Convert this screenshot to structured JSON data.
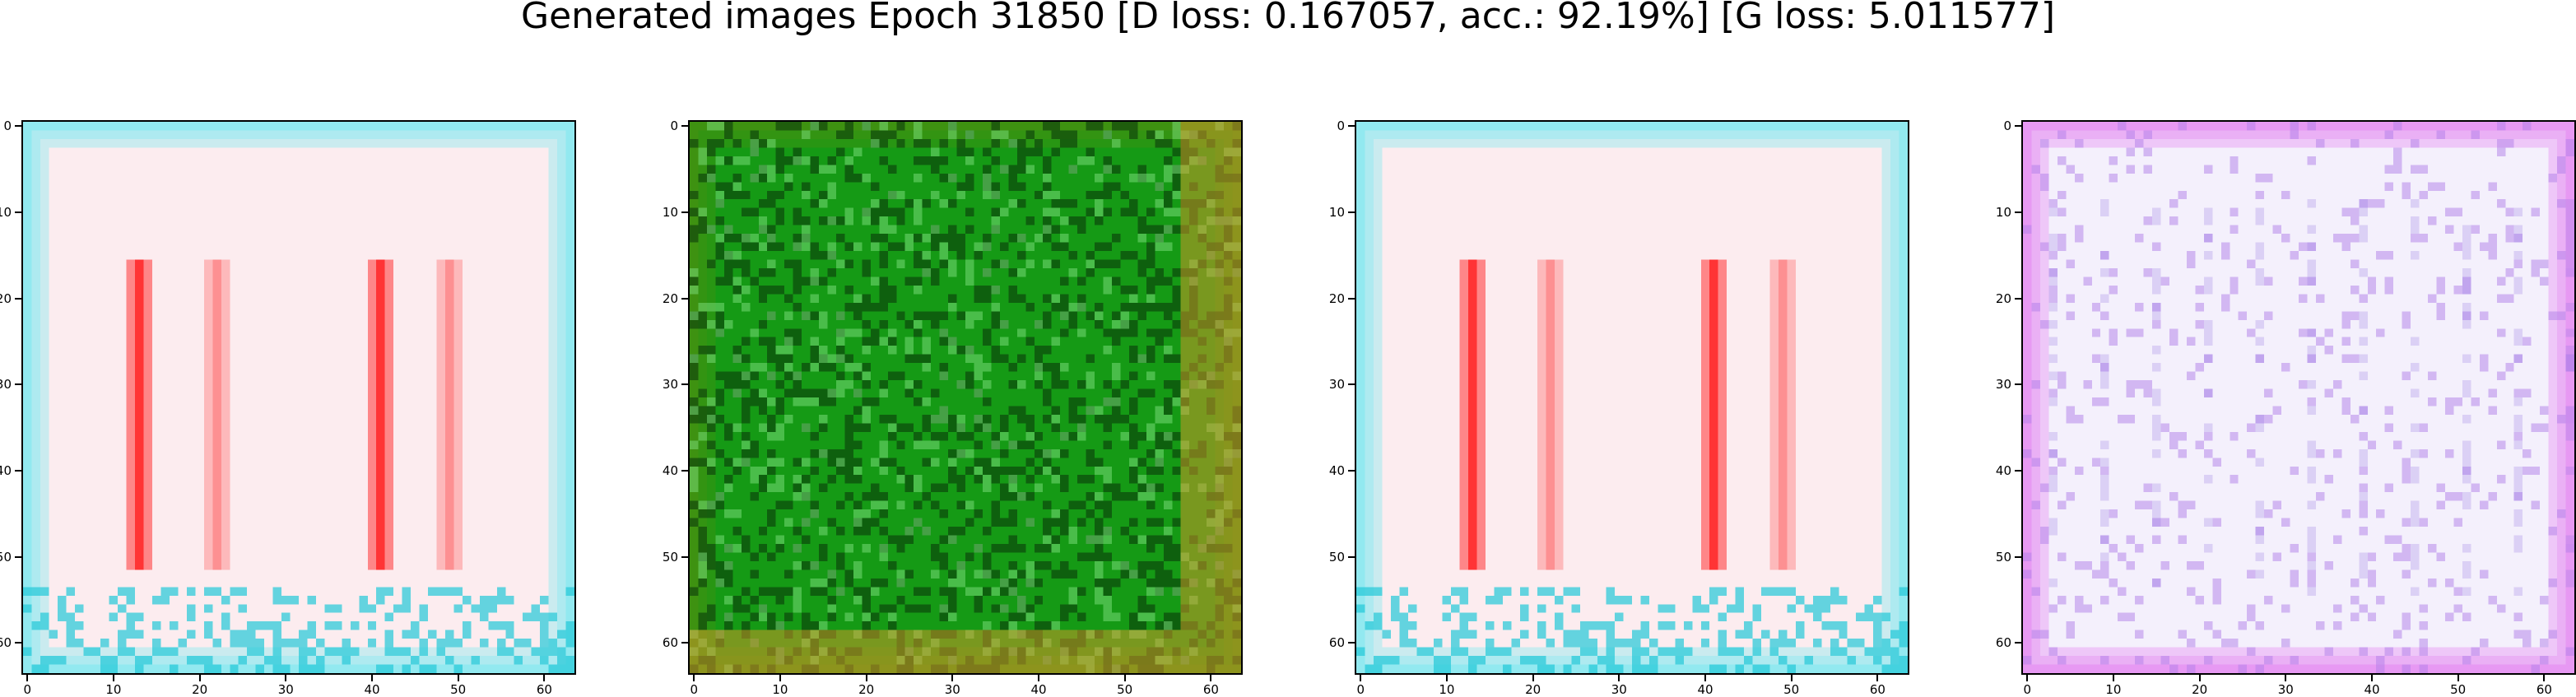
{
  "title": "Generated images Epoch 31850 [D loss: 0.167057, acc.: 92.19%] [G loss: 5.011577]",
  "axis": {
    "x_ticks": [
      "0",
      "10",
      "20",
      "30",
      "40",
      "50",
      "60"
    ],
    "y_ticks": [
      "0",
      "10",
      "20",
      "30",
      "40",
      "50",
      "60"
    ],
    "tick_values": [
      0,
      10,
      20,
      30,
      40,
      50,
      60
    ],
    "range": [
      -0.5,
      63.5
    ]
  },
  "panels": [
    {
      "palette": {
        "base": "#fcecef",
        "accent": "#ff2020",
        "border": "#6ee8f0",
        "noise": "#22c8d8"
      }
    },
    {
      "palette": {
        "base": "#159a15",
        "accent": "#0a3a0a",
        "border": "#4b8f10",
        "noise": "#7ee07e"
      }
    },
    {
      "palette": {
        "base": "#fcecef",
        "accent": "#ff2020",
        "border": "#6ee8f0",
        "noise": "#22c8d8"
      }
    },
    {
      "palette": {
        "base": "#f4f0fc",
        "accent": "#b07ee8",
        "border": "#e27cf0",
        "noise": "#8f6fe0"
      }
    }
  ]
}
